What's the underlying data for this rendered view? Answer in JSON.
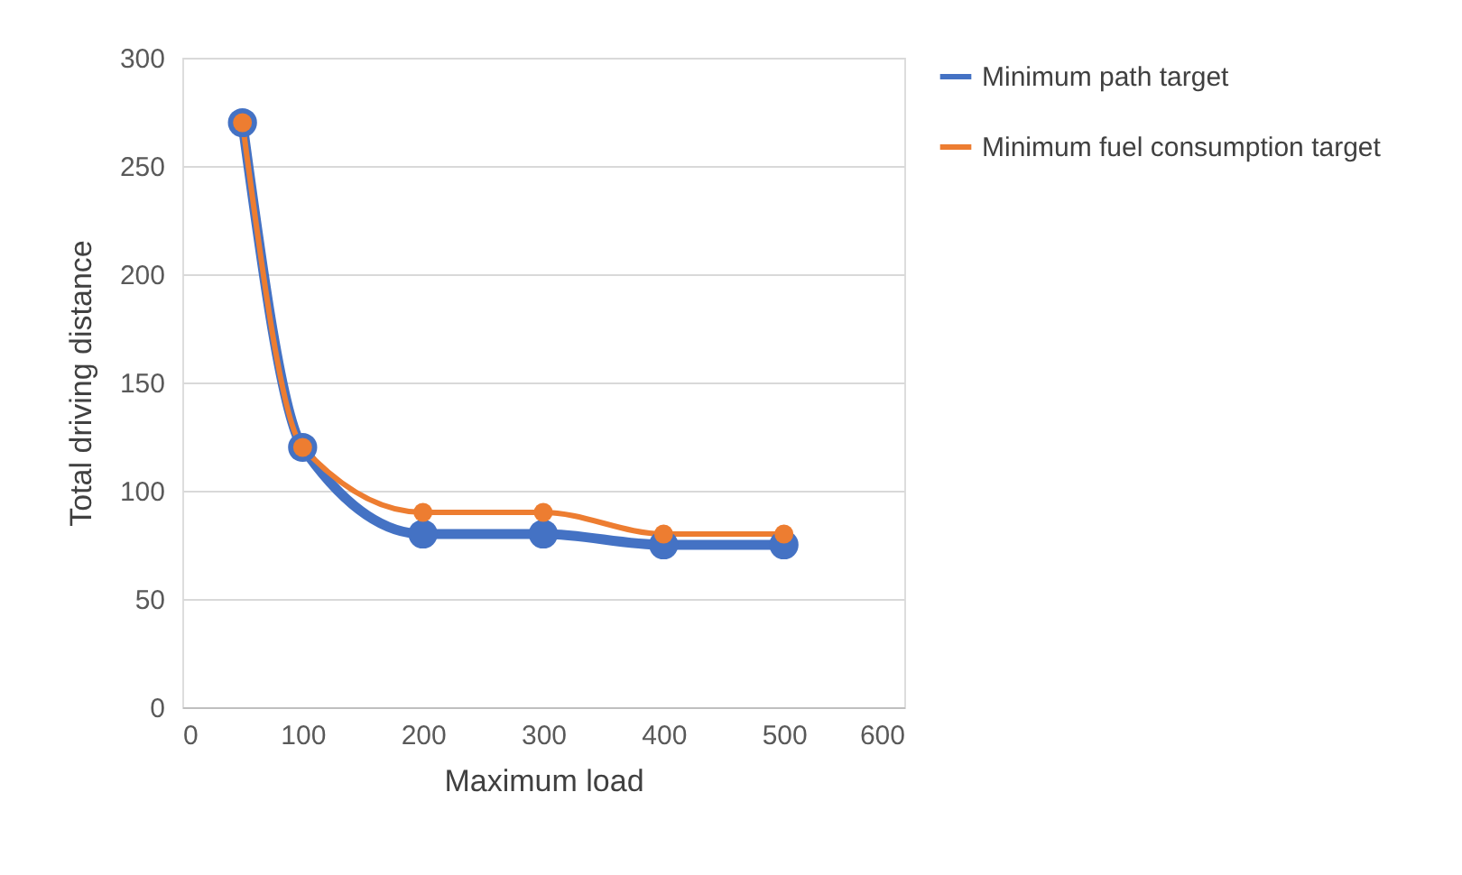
{
  "chart_data": {
    "type": "line",
    "xlabel": "Maximum load",
    "ylabel": "Total driving distance",
    "x": [
      50,
      100,
      200,
      300,
      400,
      500
    ],
    "series": [
      {
        "name": "Minimum path target",
        "color": "#4472c4",
        "values": [
          270,
          120,
          80,
          80,
          75,
          75
        ]
      },
      {
        "name": "Minimum fuel consumption target",
        "color": "#ed7d31",
        "values": [
          270,
          120,
          90,
          90,
          80,
          80
        ]
      }
    ],
    "xlim": [
      0,
      600
    ],
    "xticks": [
      0,
      100,
      200,
      300,
      400,
      500,
      600
    ],
    "ylim": [
      0,
      300
    ],
    "yticks": [
      0,
      50,
      100,
      150,
      200,
      250,
      300
    ],
    "grid": "y",
    "legend": "right",
    "marker": "circle",
    "line_style": "solid"
  }
}
